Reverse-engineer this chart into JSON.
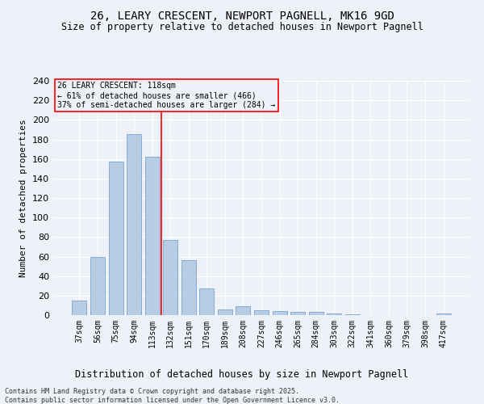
{
  "title_line1": "26, LEARY CRESCENT, NEWPORT PAGNELL, MK16 9GD",
  "title_line2": "Size of property relative to detached houses in Newport Pagnell",
  "xlabel": "Distribution of detached houses by size in Newport Pagnell",
  "ylabel": "Number of detached properties",
  "categories": [
    "37sqm",
    "56sqm",
    "75sqm",
    "94sqm",
    "113sqm",
    "132sqm",
    "151sqm",
    "170sqm",
    "189sqm",
    "208sqm",
    "227sqm",
    "246sqm",
    "265sqm",
    "284sqm",
    "303sqm",
    "322sqm",
    "341sqm",
    "360sqm",
    "379sqm",
    "398sqm",
    "417sqm"
  ],
  "values": [
    15,
    60,
    157,
    185,
    162,
    77,
    56,
    27,
    6,
    9,
    5,
    4,
    3,
    3,
    2,
    1,
    0,
    0,
    0,
    0,
    2
  ],
  "bar_color": "#b8cce4",
  "bar_edgecolor": "#6699cc",
  "bar_width": 0.8,
  "ylim": [
    0,
    240
  ],
  "yticks": [
    0,
    20,
    40,
    60,
    80,
    100,
    120,
    140,
    160,
    180,
    200,
    220,
    240
  ],
  "redline_x": 4.5,
  "annotation_line1": "26 LEARY CRESCENT: 118sqm",
  "annotation_line2": "← 61% of detached houses are smaller (466)",
  "annotation_line3": "37% of semi-detached houses are larger (284) →",
  "bg_color": "#eef2f8",
  "grid_color": "#ffffff",
  "footer_line1": "Contains HM Land Registry data © Crown copyright and database right 2025.",
  "footer_line2": "Contains public sector information licensed under the Open Government Licence v3.0."
}
